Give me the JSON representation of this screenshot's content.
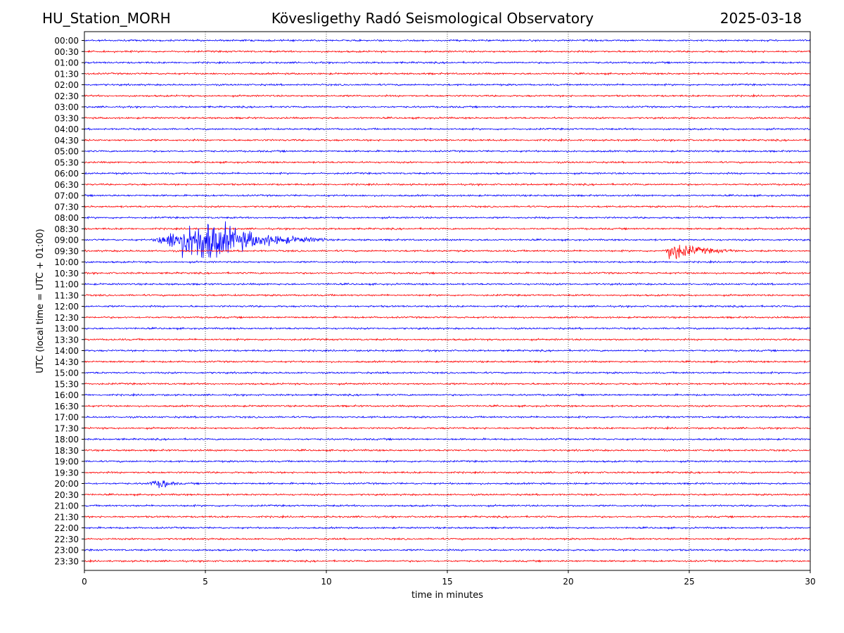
{
  "header": {
    "station": "HU_Station_MORH",
    "observatory": "Kövesligethy Radó Seismological Observatory",
    "date": "2025-03-18"
  },
  "colors": {
    "even_rows": "#0000ff",
    "odd_rows": "#ff0000",
    "axis": "#000000",
    "grid": "#000000"
  },
  "chart_data": {
    "type": "line",
    "title": "Kövesligethy Radó Seismological Observatory",
    "xlabel": "time in minutes",
    "ylabel": "UTC (local time = UTC + 01:00)",
    "xlim": [
      0,
      30
    ],
    "x_ticks": [
      0,
      5,
      10,
      15,
      20,
      25,
      30
    ],
    "grid": "vertical dotted at 5, 10, 15, 20, 25",
    "rows": [
      "00:00",
      "00:30",
      "01:00",
      "01:30",
      "02:00",
      "02:30",
      "03:00",
      "03:30",
      "04:00",
      "04:30",
      "05:00",
      "05:30",
      "06:00",
      "06:30",
      "07:00",
      "07:30",
      "08:00",
      "08:30",
      "09:00",
      "09:30",
      "10:00",
      "10:30",
      "11:00",
      "11:30",
      "12:00",
      "12:30",
      "13:00",
      "13:30",
      "14:00",
      "14:30",
      "15:00",
      "15:30",
      "16:00",
      "16:30",
      "17:00",
      "17:30",
      "18:00",
      "18:30",
      "19:00",
      "19:30",
      "20:00",
      "20:30",
      "21:00",
      "21:30",
      "22:00",
      "22:30",
      "23:00",
      "23:30"
    ],
    "row_colors": "alternating blue/red starting with blue",
    "events": [
      {
        "row": "09:00",
        "start_min": 2.8,
        "peak_min": 5.0,
        "end_min": 10.0,
        "relative_amplitude": 1.0
      },
      {
        "row": "09:30",
        "start_min": 24.0,
        "peak_min": 24.2,
        "end_min": 27.0,
        "relative_amplitude": 0.45
      },
      {
        "row": "20:00",
        "start_min": 2.5,
        "peak_min": 3.3,
        "end_min": 4.0,
        "relative_amplitude": 0.18
      }
    ]
  }
}
